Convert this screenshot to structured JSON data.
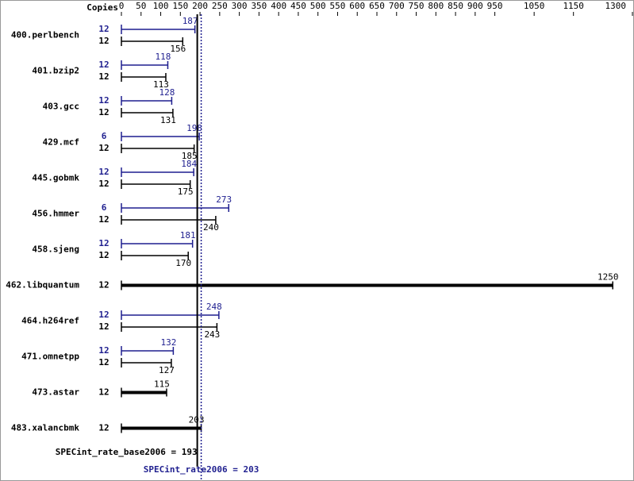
{
  "chart_data": {
    "type": "bar",
    "orientation": "horizontal",
    "x_header": "Copies",
    "categories": [
      "400.perlbench",
      "401.bzip2",
      "403.gcc",
      "429.mcf",
      "445.gobmk",
      "456.hmmer",
      "458.sjeng",
      "462.libquantum",
      "464.h264ref",
      "471.omnetpp",
      "473.astar",
      "483.xalancbmk"
    ],
    "series": [
      {
        "color": "#1f1f8f",
        "copies": [
          12,
          12,
          12,
          6,
          12,
          6,
          12,
          null,
          12,
          12,
          null,
          null
        ],
        "values": [
          187,
          118,
          128,
          198,
          184,
          273,
          181,
          null,
          248,
          132,
          null,
          null
        ]
      },
      {
        "color": "#000000",
        "copies": [
          12,
          12,
          12,
          12,
          12,
          12,
          12,
          12,
          12,
          12,
          12,
          12
        ],
        "values": [
          156,
          113,
          131,
          185,
          175,
          240,
          170,
          1250,
          243,
          127,
          115,
          203
        ]
      }
    ],
    "xlim": [
      0,
      1300
    ],
    "xticks": [
      0,
      50,
      100,
      150,
      200,
      250,
      300,
      350,
      400,
      450,
      500,
      550,
      600,
      650,
      700,
      750,
      800,
      850,
      900,
      950,
      1050,
      1150,
      1300
    ],
    "base_metric": {
      "value": 193,
      "label": "SPECint_rate_base2006 = 193",
      "color": "#000000"
    },
    "peak_metric": {
      "value": 203,
      "label": "SPECint_rate2006 = 203",
      "color": "#1f1f8f"
    }
  }
}
